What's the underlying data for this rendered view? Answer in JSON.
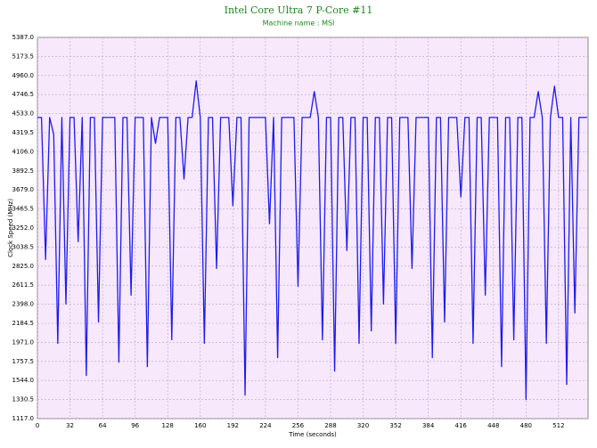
{
  "chart_data": {
    "type": "line",
    "title": "Intel Core Ultra 7 P-Core #11",
    "subtitle": "Machine name : MSI",
    "x_label": "Time (seconds)",
    "y_label": "Clock Speed (MHz)",
    "xlim": [
      0,
      541
    ],
    "xticks": [
      0,
      32,
      64,
      96,
      128,
      160,
      192,
      224,
      256,
      288,
      320,
      352,
      384,
      416,
      448,
      480,
      512
    ],
    "ylim": [
      1117,
      5387
    ],
    "yticks": [
      {
        "value": 1117,
        "label": "1117.0"
      },
      1330.5,
      {
        "value": 1544,
        "label": "1544.0"
      },
      1757.5,
      {
        "value": 1971,
        "label": "1971.0"
      },
      2184.5,
      {
        "value": 2398,
        "label": "2398.0"
      },
      2611.5,
      {
        "value": 2825,
        "label": "2825.0"
      },
      3038.5,
      {
        "value": 3252,
        "label": "3252.0"
      },
      3465.5,
      {
        "value": 3679,
        "label": "3679.0"
      },
      3892.5,
      {
        "value": 4106,
        "label": "4106.0"
      },
      4319.5,
      {
        "value": 4533,
        "label": "4533.0"
      },
      4746.5,
      {
        "value": 4960,
        "label": "4960.0"
      },
      5173.5,
      {
        "value": 5387,
        "label": "5387.0"
      }
    ],
    "grid": true,
    "x": [
      0,
      4,
      8,
      12,
      16,
      20,
      24,
      28,
      32,
      36,
      40,
      44,
      48,
      52,
      56,
      60,
      64,
      68,
      72,
      76,
      80,
      84,
      88,
      92,
      96,
      100,
      104,
      108,
      112,
      116,
      120,
      124,
      128,
      132,
      136,
      140,
      144,
      148,
      152,
      156,
      160,
      164,
      168,
      172,
      176,
      180,
      184,
      188,
      192,
      196,
      200,
      204,
      208,
      212,
      216,
      220,
      224,
      228,
      232,
      236,
      240,
      244,
      248,
      252,
      256,
      260,
      264,
      268,
      272,
      276,
      280,
      284,
      288,
      292,
      296,
      300,
      304,
      308,
      312,
      316,
      320,
      324,
      328,
      332,
      336,
      340,
      344,
      348,
      352,
      356,
      360,
      364,
      368,
      372,
      376,
      380,
      384,
      388,
      392,
      396,
      400,
      404,
      408,
      412,
      416,
      420,
      424,
      428,
      432,
      436,
      440,
      444,
      448,
      452,
      456,
      460,
      464,
      468,
      472,
      476,
      480,
      484,
      488,
      492,
      496,
      500,
      504,
      508,
      512,
      516,
      520,
      524,
      528,
      532,
      536,
      540
    ],
    "series": [
      {
        "name": "P-Core #11",
        "color": "#1c1cf0",
        "values": [
          4490,
          4490,
          2900,
          4490,
          4300,
          1960,
          4490,
          2400,
          4490,
          4490,
          3100,
          4490,
          1600,
          4490,
          4490,
          2200,
          4490,
          4490,
          4490,
          4490,
          1750,
          4490,
          4490,
          2500,
          4490,
          4490,
          4490,
          1700,
          4490,
          4200,
          4490,
          4490,
          4490,
          2000,
          4490,
          4490,
          3800,
          4490,
          4490,
          4900,
          4490,
          1960,
          4490,
          4490,
          2800,
          4490,
          4490,
          4490,
          3500,
          4490,
          4490,
          1380,
          4490,
          4490,
          4490,
          4490,
          4490,
          3300,
          4490,
          1800,
          4490,
          4490,
          4490,
          4490,
          2600,
          4490,
          4490,
          4490,
          4780,
          4490,
          2000,
          4490,
          4490,
          1650,
          4490,
          4490,
          3000,
          4490,
          4490,
          1960,
          4490,
          4490,
          2100,
          4490,
          4490,
          2400,
          4490,
          4490,
          1960,
          4490,
          4490,
          4490,
          2800,
          4490,
          4490,
          4490,
          4490,
          1800,
          4490,
          4490,
          2200,
          4490,
          4490,
          4490,
          3600,
          4490,
          4490,
          1960,
          4490,
          4490,
          2500,
          4490,
          4490,
          4490,
          1700,
          4490,
          4490,
          2000,
          4490,
          4490,
          1330,
          4490,
          4490,
          4780,
          4490,
          1960,
          4490,
          4840,
          4490,
          4490,
          1500,
          4490,
          2300,
          4490,
          4490,
          4490
        ]
      }
    ]
  }
}
